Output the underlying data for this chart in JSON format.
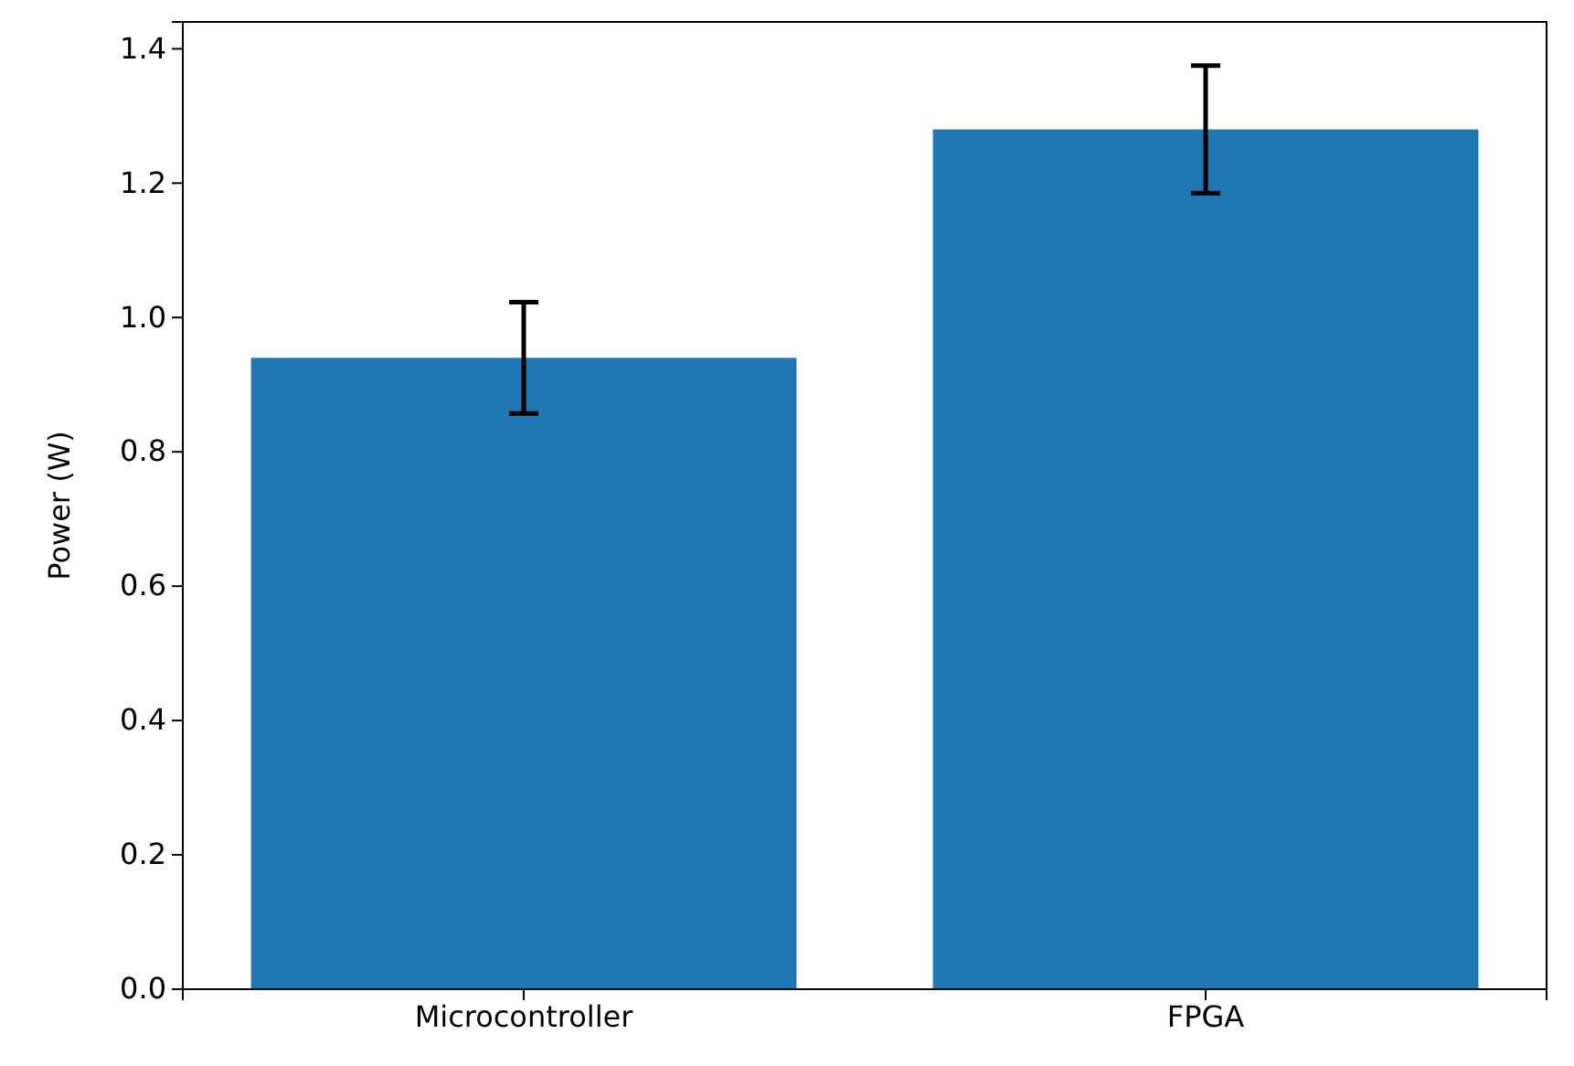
{
  "chart_data": {
    "type": "bar",
    "ylabel": "Power (W)",
    "categories": [
      "Microcontroller",
      "FPGA"
    ],
    "values": [
      0.94,
      1.28
    ],
    "errors": [
      0.083,
      0.095
    ],
    "color": "#1f77b4",
    "ylim": [
      0,
      1.44
    ],
    "yticks": [
      {
        "value": 0,
        "label": "0.0"
      },
      {
        "value": 0.2,
        "label": "0.2"
      },
      {
        "value": 0.4,
        "label": "0.4"
      },
      {
        "value": 0.6,
        "label": "0.6"
      },
      {
        "value": 0.8,
        "label": "0.8"
      },
      {
        "value": 1,
        "label": "1.0"
      },
      {
        "value": 1.2,
        "label": "1.2"
      },
      {
        "value": 1.4,
        "label": "1.4"
      }
    ],
    "grid": false
  }
}
